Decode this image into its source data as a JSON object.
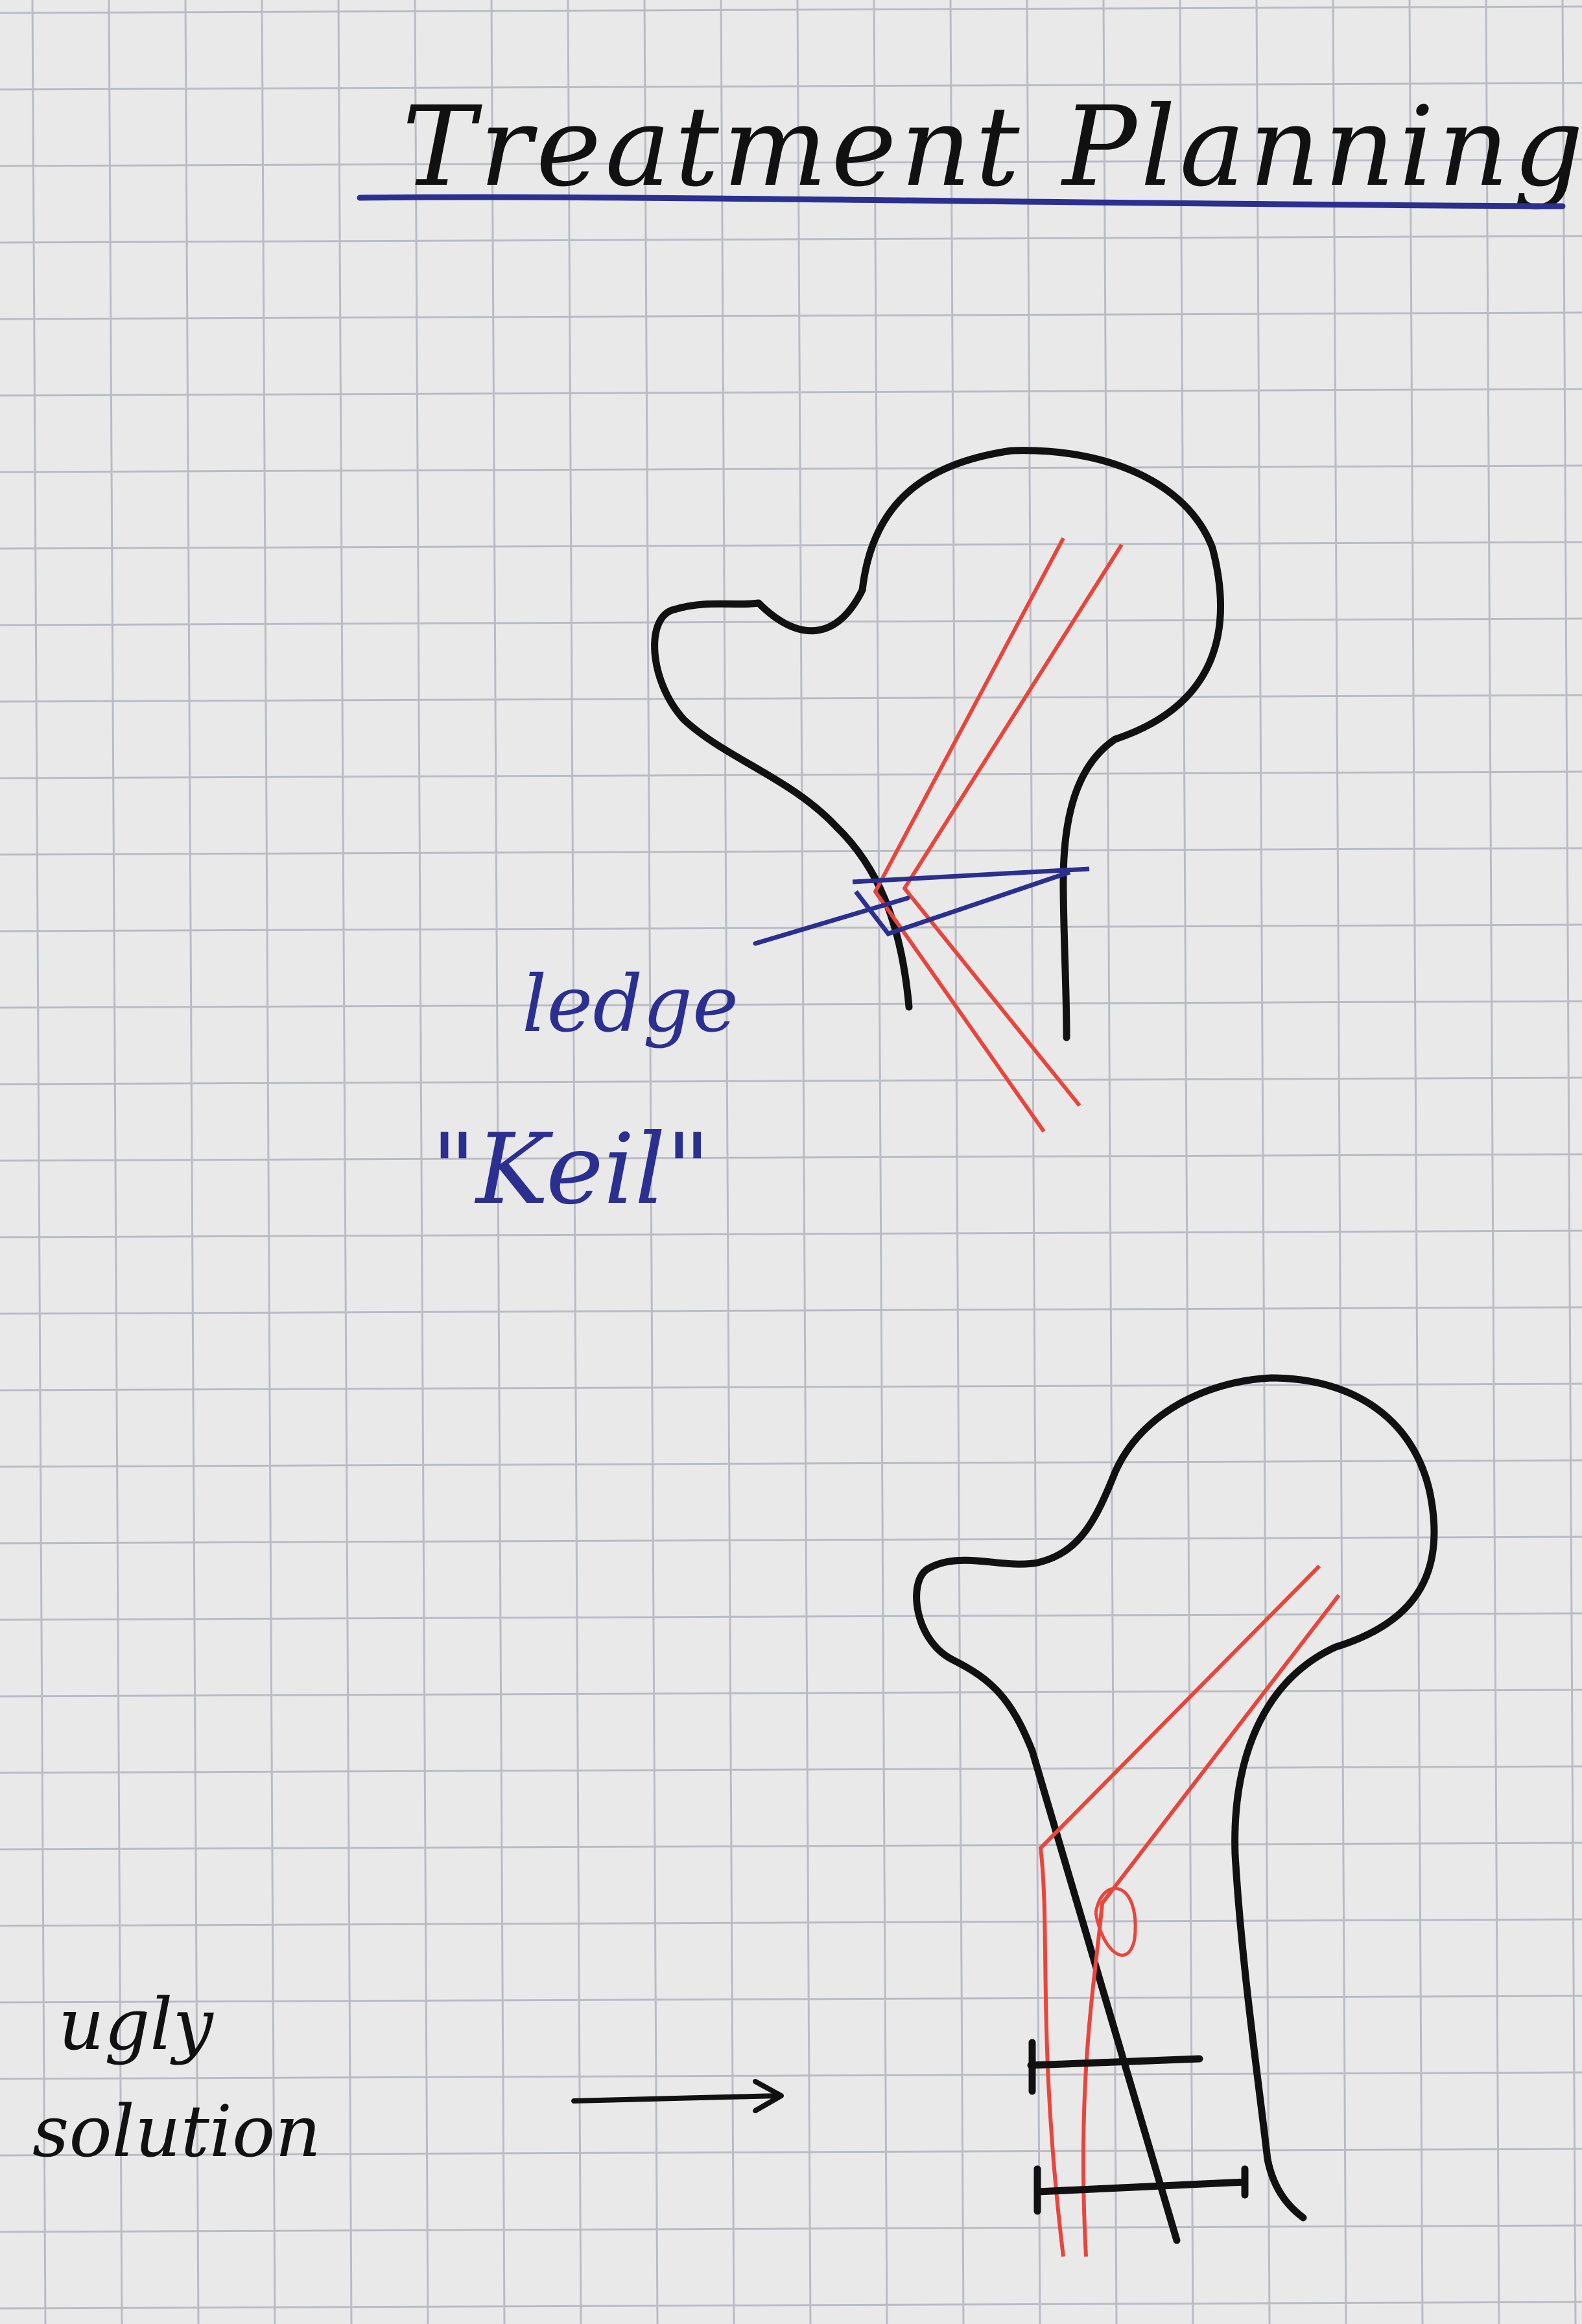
{
  "title": "Treatment Planning",
  "labels": {
    "ledge": "ledge",
    "keil": "\"Keil\"",
    "ugly_line1": "ugly",
    "ugly_line2": "solution"
  },
  "colors": {
    "paper": "#e9e9ea",
    "grid": "#b9bcc2",
    "bone_outline": "#111111",
    "implant": "#e8453c",
    "annotation_blue": "#2b2f8f"
  }
}
